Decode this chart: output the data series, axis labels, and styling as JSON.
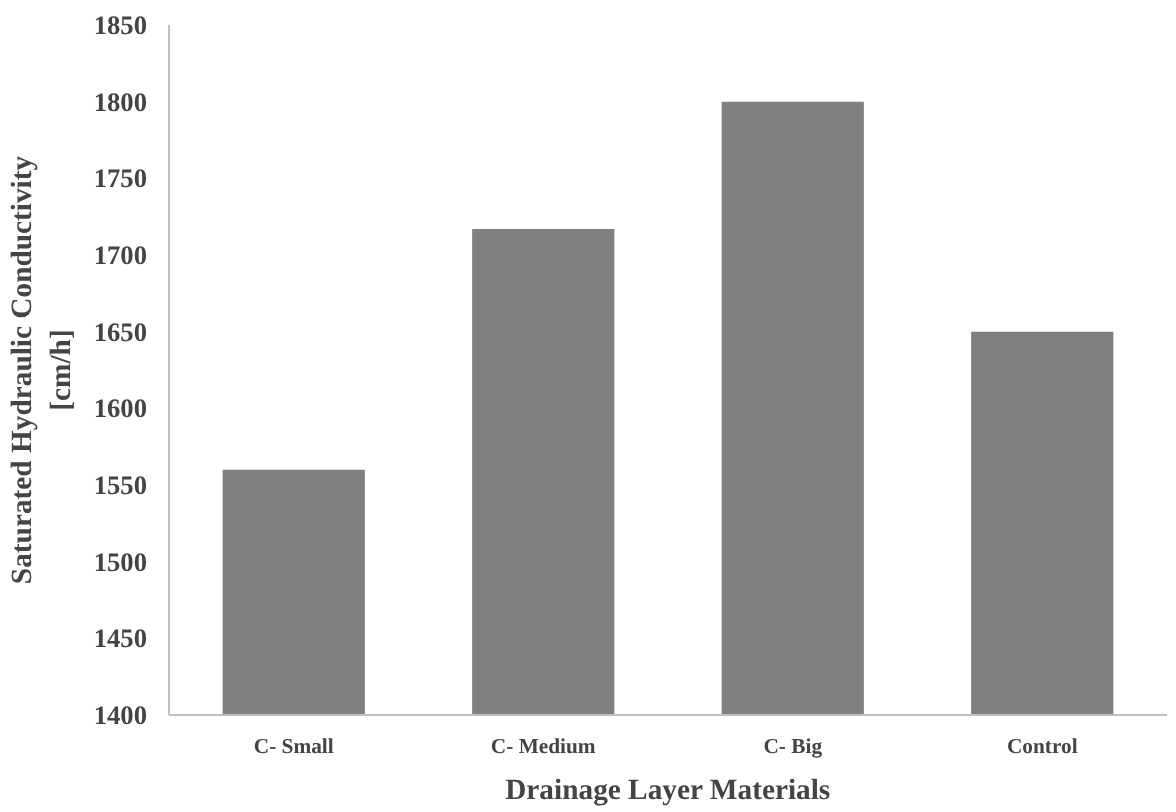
{
  "chart_data": {
    "type": "bar",
    "xlabel": "Drainage Layer Materials",
    "ylabel": "Saturated Hydraulic Conductivity\n[cm/h]",
    "categories": [
      "C- Small",
      "C- Medium",
      "C- Big",
      "Control"
    ],
    "values": [
      1560,
      1717,
      1800,
      1650
    ],
    "color": "#808080",
    "ylim": [
      1400,
      1850
    ],
    "yticks": [
      1400,
      1450,
      1500,
      1550,
      1600,
      1650,
      1700,
      1750,
      1800,
      1850
    ],
    "grid": false
  }
}
